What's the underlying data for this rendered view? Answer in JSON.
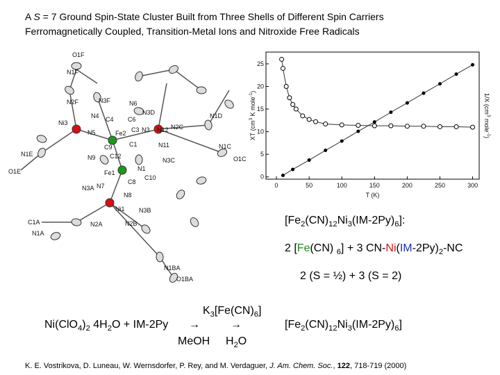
{
  "header": {
    "line1": [
      {
        "text": "A "
      },
      {
        "text": "S",
        "style": "italic"
      },
      {
        "text": " = 7 Ground Spin-State Cluster Built from Three Shells of Different Spin Carriers"
      }
    ],
    "line2": [
      {
        "text": "Ferromagnetically Coupled, Transition-Metal Ions and Nitroxide Free Radicals"
      }
    ]
  },
  "structure": {
    "atoms": [
      "O1F",
      "N1F",
      "N2F",
      "N3F",
      "N6",
      "N3D",
      "Ni3",
      "N4",
      "C4",
      "C6",
      "Fe2",
      "C3",
      "N3",
      "N12",
      "N2C",
      "N1D",
      "N5",
      "C9",
      "C1",
      "N11",
      "N1E",
      "O1E",
      "N9",
      "C12",
      "N1C",
      "N3C",
      "O1C",
      "Fe1",
      "N1",
      "C10",
      "N7",
      "N3A",
      "C8",
      "N8",
      "Ni1",
      "N3B",
      "C1A",
      "N2A",
      "N2B",
      "N1A",
      "N1BA",
      "O1BA"
    ],
    "ni_color": "#d41010",
    "fe_color": "#1a9a1a"
  },
  "plot": {
    "xlabel": "T (K)",
    "ylabel": [
      {
        "text": "XT (cm"
      },
      {
        "text": "3",
        "style": "sup"
      },
      {
        "text": " K mole"
      },
      {
        "text": "-1",
        "style": "sup"
      },
      {
        "text": ")"
      }
    ],
    "y2label": [
      {
        "text": "1/X (cm"
      },
      {
        "text": "3",
        "style": "sup"
      },
      {
        "text": " mole"
      },
      {
        "text": "-1",
        "style": "sup"
      },
      {
        "text": ")"
      }
    ],
    "xlim": [
      -16,
      310
    ],
    "ylim": [
      -0.5,
      27.6
    ],
    "y2lim": [
      0,
      30
    ],
    "xticks": [
      0,
      50,
      100,
      150,
      200,
      250,
      300
    ],
    "yticks": [
      0,
      5,
      10,
      15,
      20,
      25
    ],
    "series": [
      {
        "name": "XT",
        "x": [
          8,
          10,
          15,
          20,
          25,
          30,
          40,
          50,
          60,
          75,
          100,
          125,
          150,
          175,
          200,
          225,
          250,
          275,
          300
        ],
        "values": [
          26,
          24,
          20,
          17.5,
          16,
          15,
          13.5,
          12.7,
          12.2,
          11.7,
          11.5,
          11.4,
          11.3,
          11.3,
          11.2,
          11.2,
          11.1,
          11.1,
          11
        ]
      },
      {
        "name": "1/X",
        "axis": "y2",
        "x": [
          10,
          25,
          50,
          75,
          100,
          125,
          150,
          175,
          200,
          225,
          250,
          275,
          300
        ],
        "values": [
          0.9,
          2.3,
          4.5,
          6.8,
          9,
          11.3,
          13.5,
          15.8,
          18,
          20.3,
          22.5,
          24.8,
          27
        ]
      }
    ]
  },
  "formula": [
    {
      "text": "[Fe"
    },
    {
      "text": "2",
      "style": "sub"
    },
    {
      "text": "(CN)"
    },
    {
      "text": "12",
      "style": "sub"
    },
    {
      "text": "Ni"
    },
    {
      "text": "3",
      "style": "sub"
    },
    {
      "text": "(IM-2Py)"
    },
    {
      "text": "6",
      "style": "sub"
    },
    {
      "text": "]:"
    }
  ],
  "composition": [
    {
      "text": "2 ["
    },
    {
      "text": "Fe",
      "color": "#1a8a1a"
    },
    {
      "text": "(CN) "
    },
    {
      "text": "6",
      "style": "sub"
    },
    {
      "text": "] + 3 CN-"
    },
    {
      "text": "Ni",
      "color": "#d41010"
    },
    {
      "text": "("
    },
    {
      "text": "IM",
      "color": "#1a30b0"
    },
    {
      "text": "-2Py)"
    },
    {
      "text": "2",
      "style": "sub"
    },
    {
      "text": "-NC"
    }
  ],
  "spins": "2 (S = ½) + 3 (S = 2)",
  "reaction": {
    "reactants": [
      {
        "text": "Ni(ClO"
      },
      {
        "text": "4",
        "style": "sub"
      },
      {
        "text": ")"
      },
      {
        "text": "2",
        "style": "sub"
      },
      {
        "text": " 4H"
      },
      {
        "text": "2",
        "style": "sub"
      },
      {
        "text": "O + IM-2Py"
      }
    ],
    "arrow1": "→",
    "reagent": [
      {
        "text": "K"
      },
      {
        "text": "3",
        "style": "sub"
      },
      {
        "text": "[Fe(CN)"
      },
      {
        "text": "6",
        "style": "sub"
      },
      {
        "text": "]"
      }
    ],
    "arrow2": "→",
    "solvent1": "MeOH",
    "solvent2": [
      {
        "text": "H"
      },
      {
        "text": "2",
        "style": "sub"
      },
      {
        "text": "O"
      }
    ],
    "product": [
      {
        "text": "[Fe"
      },
      {
        "text": "2",
        "style": "sub"
      },
      {
        "text": "(CN)"
      },
      {
        "text": "12",
        "style": "sub"
      },
      {
        "text": "Ni"
      },
      {
        "text": "3",
        "style": "sub"
      },
      {
        "text": "(IM-2Py)"
      },
      {
        "text": "6",
        "style": "sub"
      },
      {
        "text": "]"
      }
    ]
  },
  "citation": [
    {
      "text": "K. E. Vostrikova, D. Luneau, W. Wernsdorfer, P. Rey, and M. Verdaguer, "
    },
    {
      "text": "J. Am. Chem. Soc.",
      "style": "italic"
    },
    {
      "text": ", "
    },
    {
      "text": "122",
      "style": "bold"
    },
    {
      "text": ", 718-719 (2000)"
    }
  ]
}
